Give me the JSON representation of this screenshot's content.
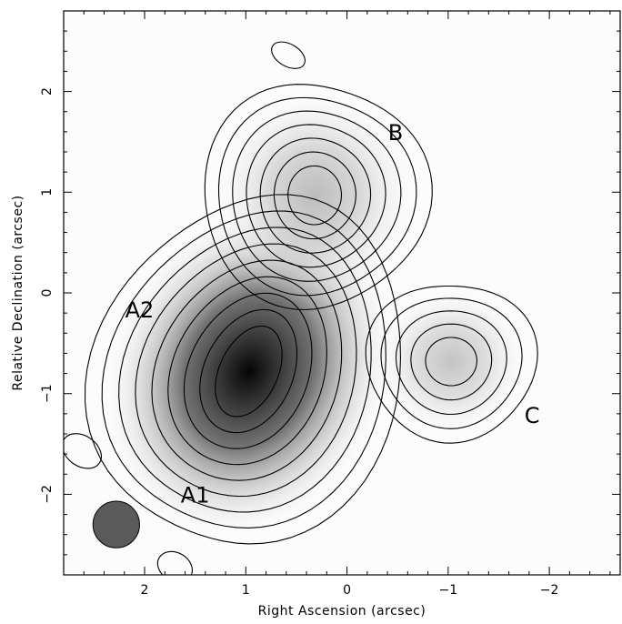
{
  "chart_data": {
    "type": "contour",
    "xlabel": "Right Ascension  (arcsec)",
    "ylabel": "Relative Declination  (arcsec)",
    "xlim": [
      2.8,
      -2.7
    ],
    "ylim": [
      -2.8,
      2.8
    ],
    "x_ticks": [
      2,
      1,
      0,
      -1,
      -2
    ],
    "x_tick_labels": [
      "2",
      "1",
      "0",
      "−1",
      "−2"
    ],
    "y_ticks": [
      2,
      1,
      0,
      -1,
      -2
    ],
    "y_tick_labels": [
      "2",
      "1",
      "0",
      "−1",
      "−2"
    ],
    "grid": false,
    "sources": [
      {
        "label": "A1",
        "label_pos": [
          1.5,
          -2.02
        ],
        "x": 0.97,
        "y": -0.78,
        "peak_gray": "#050505",
        "n_contours": 9,
        "cx": 0.28,
        "cy": 0.62,
        "rot": 25,
        "base": 0.22
      },
      {
        "label": "A2",
        "label_pos": [
          2.05,
          -0.18
        ],
        "x": null,
        "y": null
      },
      {
        "label": "B",
        "label_pos": [
          -0.48,
          1.58
        ],
        "x": 0.32,
        "y": 0.97,
        "peak_gray": "#bcbcbc",
        "n_contours": 7,
        "cx": 0.25,
        "cy": 0.3,
        "rot": 0,
        "base": 0.2
      },
      {
        "label": "C",
        "label_pos": [
          -1.83,
          -1.23
        ],
        "x": -1.03,
        "y": -0.68,
        "peak_gray": "#c4c4c4",
        "n_contours": 5,
        "cx": 0.22,
        "cy": 0.2,
        "rot": 0,
        "base": 0.2
      }
    ],
    "noise_contours": [
      {
        "x": 0.58,
        "y": 2.36,
        "rx": 0.18,
        "ry": 0.11,
        "rot": 30
      },
      {
        "x": 2.62,
        "y": -1.57,
        "rx": 0.21,
        "ry": 0.15,
        "rot": 35
      },
      {
        "x": 1.7,
        "y": -2.72,
        "rx": 0.18,
        "ry": 0.14,
        "rot": 30
      }
    ],
    "beam": {
      "x": 2.28,
      "y": -2.3,
      "radius": 0.23,
      "color": "#5a5a5a"
    }
  }
}
